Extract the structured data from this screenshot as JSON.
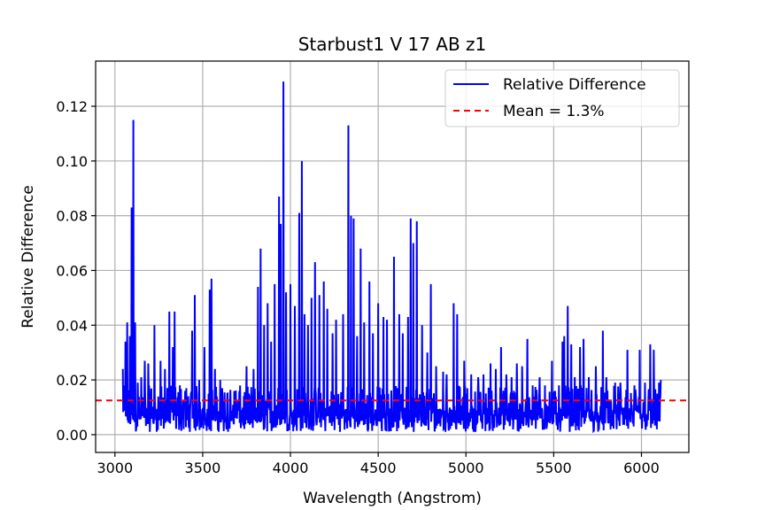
{
  "chart_data": {
    "type": "line",
    "title": "Starbust1 V 17 AB z1",
    "xlabel": "Wavelength (Angstrom)",
    "ylabel": "Relative Difference",
    "xlim": [
      2890,
      6270
    ],
    "ylim": [
      -0.0065,
      0.1365
    ],
    "grid": true,
    "legend_position": "top-right",
    "xticks": [
      3000,
      3500,
      4000,
      4500,
      5000,
      5500,
      6000
    ],
    "yticks": [
      0.0,
      0.02,
      0.04,
      0.06,
      0.08,
      0.1,
      0.12
    ],
    "xtick_labels": [
      "3000",
      "3500",
      "4000",
      "4500",
      "5000",
      "5500",
      "6000"
    ],
    "ytick_labels": [
      "0.00",
      "0.02",
      "0.04",
      "0.06",
      "0.08",
      "0.10",
      "0.12"
    ],
    "series": [
      {
        "name": "Relative Difference",
        "color": "#0000ff",
        "style": "solid",
        "peaks": [
          [
            3045,
            0.024
          ],
          [
            3060,
            0.034
          ],
          [
            3070,
            0.041
          ],
          [
            3085,
            0.036
          ],
          [
            3095,
            0.083
          ],
          [
            3105,
            0.115
          ],
          [
            3115,
            0.041
          ],
          [
            3130,
            0.019
          ],
          [
            3150,
            0.021
          ],
          [
            3170,
            0.027
          ],
          [
            3190,
            0.026
          ],
          [
            3225,
            0.04
          ],
          [
            3260,
            0.027
          ],
          [
            3285,
            0.024
          ],
          [
            3310,
            0.045
          ],
          [
            3330,
            0.032
          ],
          [
            3340,
            0.045
          ],
          [
            3370,
            0.018
          ],
          [
            3400,
            0.016
          ],
          [
            3440,
            0.038
          ],
          [
            3455,
            0.051
          ],
          [
            3480,
            0.02
          ],
          [
            3510,
            0.032
          ],
          [
            3540,
            0.053
          ],
          [
            3550,
            0.057
          ],
          [
            3570,
            0.024
          ],
          [
            3600,
            0.02
          ],
          [
            3640,
            0.015
          ],
          [
            3680,
            0.016
          ],
          [
            3700,
            0.011
          ],
          [
            3750,
            0.025
          ],
          [
            3790,
            0.024
          ],
          [
            3815,
            0.054
          ],
          [
            3830,
            0.068
          ],
          [
            3850,
            0.04
          ],
          [
            3870,
            0.048
          ],
          [
            3890,
            0.034
          ],
          [
            3910,
            0.055
          ],
          [
            3935,
            0.087
          ],
          [
            3945,
            0.077
          ],
          [
            3960,
            0.129
          ],
          [
            3975,
            0.052
          ],
          [
            4000,
            0.055
          ],
          [
            4025,
            0.047
          ],
          [
            4050,
            0.081
          ],
          [
            4065,
            0.1
          ],
          [
            4080,
            0.044
          ],
          [
            4100,
            0.04
          ],
          [
            4120,
            0.05
          ],
          [
            4140,
            0.063
          ],
          [
            4165,
            0.051
          ],
          [
            4190,
            0.056
          ],
          [
            4210,
            0.046
          ],
          [
            4240,
            0.037
          ],
          [
            4260,
            0.042
          ],
          [
            4300,
            0.044
          ],
          [
            4330,
            0.113
          ],
          [
            4345,
            0.08
          ],
          [
            4360,
            0.079
          ],
          [
            4380,
            0.036
          ],
          [
            4400,
            0.068
          ],
          [
            4420,
            0.041
          ],
          [
            4450,
            0.056
          ],
          [
            4470,
            0.037
          ],
          [
            4500,
            0.048
          ],
          [
            4530,
            0.043
          ],
          [
            4550,
            0.042
          ],
          [
            4590,
            0.065
          ],
          [
            4620,
            0.044
          ],
          [
            4640,
            0.037
          ],
          [
            4670,
            0.043
          ],
          [
            4685,
            0.079
          ],
          [
            4700,
            0.07
          ],
          [
            4720,
            0.078
          ],
          [
            4750,
            0.04
          ],
          [
            4780,
            0.03
          ],
          [
            4800,
            0.055
          ],
          [
            4830,
            0.025
          ],
          [
            4870,
            0.023
          ],
          [
            4890,
            0.022
          ],
          [
            4930,
            0.048
          ],
          [
            4950,
            0.044
          ],
          [
            4990,
            0.027
          ],
          [
            5030,
            0.022
          ],
          [
            5070,
            0.021
          ],
          [
            5100,
            0.022
          ],
          [
            5140,
            0.026
          ],
          [
            5170,
            0.024
          ],
          [
            5200,
            0.032
          ],
          [
            5230,
            0.022
          ],
          [
            5260,
            0.021
          ],
          [
            5290,
            0.026
          ],
          [
            5320,
            0.025
          ],
          [
            5350,
            0.035
          ],
          [
            5380,
            0.018
          ],
          [
            5420,
            0.021
          ],
          [
            5450,
            0.018
          ],
          [
            5490,
            0.027
          ],
          [
            5530,
            0.018
          ],
          [
            5550,
            0.034
          ],
          [
            5560,
            0.036
          ],
          [
            5580,
            0.047
          ],
          [
            5600,
            0.033
          ],
          [
            5620,
            0.021
          ],
          [
            5650,
            0.032
          ],
          [
            5670,
            0.035
          ],
          [
            5700,
            0.021
          ],
          [
            5740,
            0.025
          ],
          [
            5780,
            0.038
          ],
          [
            5800,
            0.021
          ],
          [
            5850,
            0.019
          ],
          [
            5880,
            0.019
          ],
          [
            5920,
            0.031
          ],
          [
            5960,
            0.018
          ],
          [
            5990,
            0.031
          ],
          [
            6020,
            0.019
          ],
          [
            6050,
            0.033
          ],
          [
            6070,
            0.031
          ],
          [
            6090,
            0.015
          ],
          [
            6100,
            0.019
          ],
          [
            6110,
            0.02
          ]
        ]
      },
      {
        "name": "Mean = 1.3%",
        "color": "#ff0000",
        "style": "dashed",
        "values": [
          0.0125
        ]
      }
    ]
  }
}
